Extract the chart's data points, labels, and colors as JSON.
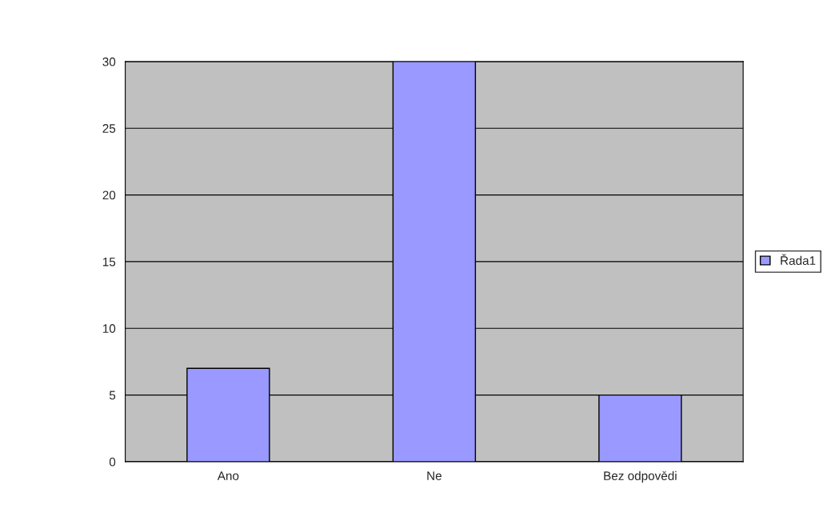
{
  "chart_data": {
    "type": "bar",
    "categories": [
      "Ano",
      "Ne",
      "Bez odpovědi"
    ],
    "series": [
      {
        "name": "Řada1",
        "color": "#9999ff",
        "values": [
          7,
          30,
          5
        ]
      }
    ],
    "ylim": [
      0,
      30
    ],
    "yticks": [
      0,
      5,
      10,
      15,
      20,
      25,
      30
    ],
    "grid": "y",
    "legend": "right"
  }
}
